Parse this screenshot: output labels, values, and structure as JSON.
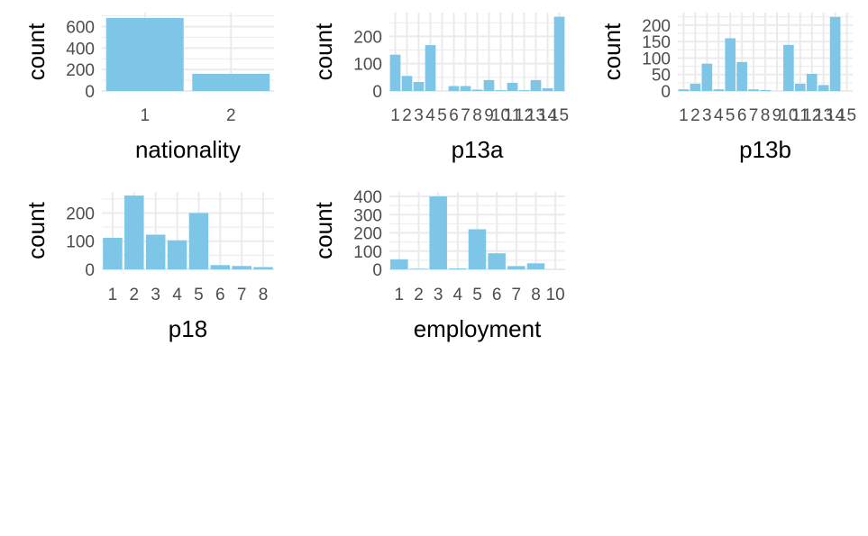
{
  "colors": {
    "bar": "#7dc6e8",
    "grid": "#ebebeb",
    "tick_text": "#4d4d4d",
    "title_text": "#000000",
    "background": "#ffffff"
  },
  "chart_data": [
    {
      "type": "bar",
      "xlabel": "nationality",
      "ylabel": "count",
      "categories": [
        "1",
        "2"
      ],
      "values": [
        680,
        160
      ],
      "ylim": [
        0,
        730
      ],
      "yticks": [
        0,
        200,
        400,
        600
      ],
      "grid": true
    },
    {
      "type": "bar",
      "xlabel": "p13a",
      "ylabel": "count",
      "categories": [
        "1",
        "2",
        "3",
        "4",
        "5",
        "6",
        "7",
        "8",
        "9",
        "10",
        "11",
        "12",
        "13",
        "14",
        "15"
      ],
      "values": [
        133,
        55,
        33,
        168,
        0,
        18,
        18,
        5,
        40,
        3,
        30,
        3,
        40,
        10,
        272
      ],
      "ylim": [
        0,
        287
      ],
      "yticks": [
        0,
        100,
        200
      ],
      "grid": true
    },
    {
      "type": "bar",
      "xlabel": "p13b",
      "ylabel": "count",
      "categories": [
        "1",
        "2",
        "3",
        "4",
        "5",
        "6",
        "7",
        "8",
        "9",
        "10",
        "11",
        "12",
        "13",
        "14",
        "15"
      ],
      "values": [
        5,
        22,
        83,
        5,
        160,
        88,
        5,
        3,
        0,
        140,
        22,
        52,
        18,
        225,
        0
      ],
      "ylim": [
        0,
        238
      ],
      "yticks": [
        0,
        50,
        100,
        150,
        200
      ],
      "grid": true
    },
    {
      "type": "bar",
      "xlabel": "p18",
      "ylabel": "count",
      "categories": [
        "1",
        "2",
        "3",
        "4",
        "5",
        "6",
        "7",
        "8"
      ],
      "values": [
        112,
        262,
        123,
        103,
        200,
        15,
        12,
        8
      ],
      "ylim": [
        0,
        275
      ],
      "yticks": [
        0,
        100,
        200
      ],
      "grid": true
    },
    {
      "type": "bar",
      "xlabel": "employment",
      "ylabel": "count",
      "categories": [
        "1",
        "2",
        "3",
        "4",
        "5",
        "6",
        "7",
        "8",
        "10"
      ],
      "values": [
        55,
        3,
        400,
        5,
        220,
        88,
        18,
        33,
        0
      ],
      "ylim": [
        0,
        425
      ],
      "yticks": [
        0,
        100,
        200,
        300,
        400
      ],
      "grid": true
    }
  ]
}
